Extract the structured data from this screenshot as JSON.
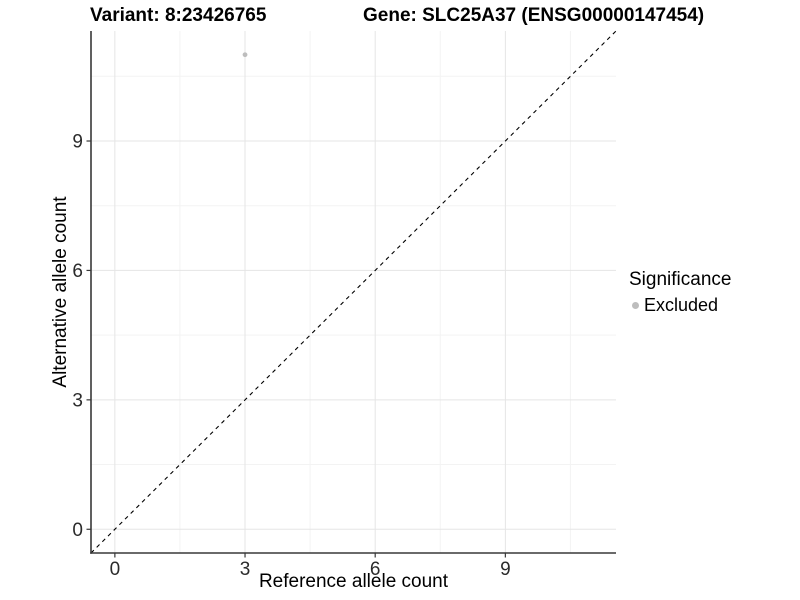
{
  "figure": {
    "title_left": "Variant: 8:23426765",
    "title_right": "Gene: SLC25A37 (ENSG00000147454)"
  },
  "chart_data": {
    "type": "scatter",
    "title": "Variant: 8:23426765    Gene: SLC25A37 (ENSG00000147454)",
    "xlabel": "Reference allele count",
    "ylabel": "Alternative allele count",
    "xlim": [
      -0.55,
      11.55
    ],
    "ylim": [
      -0.55,
      11.55
    ],
    "x_ticks": [
      0,
      3,
      6,
      9
    ],
    "y_ticks": [
      0,
      3,
      6,
      9
    ],
    "x_minor_ticks": [
      1.5,
      4.5,
      7.5,
      10.5
    ],
    "y_minor_ticks": [
      1.5,
      4.5,
      7.5,
      10.5
    ],
    "grid": true,
    "points": [
      {
        "x": 3,
        "y": 11,
        "significance": "Excluded"
      }
    ],
    "reference_line": {
      "slope": 1,
      "intercept": 0,
      "style": "dashed"
    },
    "legend": {
      "title": "Significance",
      "position": "right",
      "items": [
        {
          "label": "Excluded",
          "color": "#bdbdbd"
        }
      ]
    },
    "colors": {
      "point": "#bdbdbd",
      "grid_major": "#e5e5e5",
      "grid_minor": "#f3f3f3",
      "axis": "#383838",
      "tick_label": "#2b2b2b",
      "reference_line": "#000000"
    }
  }
}
